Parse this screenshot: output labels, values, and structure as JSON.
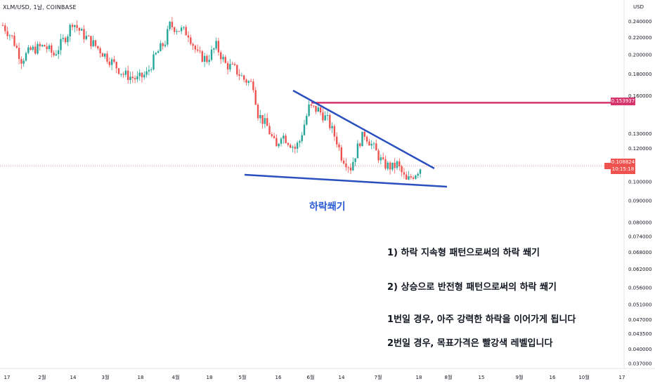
{
  "header": {
    "symbol_title": "XLM/USD, 1날, COINBASE"
  },
  "axis": {
    "currency": "USD",
    "ticks": [
      "0.240000",
      "0.220000",
      "0.200000",
      "0.180000",
      "0.160000",
      "0.130000",
      "0.120000",
      "0.100000",
      "0.090000",
      "0.080000",
      "0.074000",
      "0.068000",
      "0.062000",
      "0.056000",
      "0.051000",
      "0.047000",
      "0.043500",
      "0.040000",
      "0.037000"
    ],
    "time_labels": [
      "17",
      "2월",
      "14",
      "3월",
      "18",
      "4월",
      "18",
      "5월",
      "16",
      "6월",
      "14",
      "7월",
      "18",
      "8월",
      "15",
      "9월",
      "16",
      "10월",
      "17"
    ]
  },
  "price_tags": {
    "resistance": {
      "value": "0.153937",
      "color": "#d7336c"
    },
    "symbol_name": "XLMUSD",
    "current": {
      "value": "0.108824",
      "time": "10:15:18",
      "color": "#ef5350"
    }
  },
  "chart_data": {
    "type": "candlestick",
    "scale": "log",
    "ylim": [
      0.036,
      0.25
    ],
    "y_ticks": [
      0.24,
      0.22,
      0.2,
      0.18,
      0.16,
      0.13,
      0.12,
      0.1,
      0.09,
      0.08,
      0.074,
      0.068,
      0.062,
      0.056,
      0.051,
      0.047,
      0.0435,
      0.04,
      0.037
    ],
    "x_labels": [
      "17",
      "2월",
      "14",
      "3월",
      "18",
      "4월",
      "18",
      "5월",
      "16",
      "6월",
      "14",
      "7월",
      "18",
      "8월",
      "15",
      "9월",
      "16",
      "10월",
      "17"
    ],
    "approx_close_path": [
      [
        0,
        0.235
      ],
      [
        4,
        0.22
      ],
      [
        8,
        0.195
      ],
      [
        12,
        0.205
      ],
      [
        18,
        0.21
      ],
      [
        22,
        0.2
      ],
      [
        28,
        0.225
      ],
      [
        30,
        0.24
      ],
      [
        34,
        0.225
      ],
      [
        38,
        0.215
      ],
      [
        42,
        0.205
      ],
      [
        48,
        0.19
      ],
      [
        52,
        0.18
      ],
      [
        58,
        0.175
      ],
      [
        62,
        0.18
      ],
      [
        66,
        0.2
      ],
      [
        70,
        0.215
      ],
      [
        72,
        0.235
      ],
      [
        76,
        0.23
      ],
      [
        80,
        0.225
      ],
      [
        84,
        0.2
      ],
      [
        88,
        0.195
      ],
      [
        92,
        0.21
      ],
      [
        96,
        0.19
      ],
      [
        100,
        0.185
      ],
      [
        104,
        0.175
      ],
      [
        108,
        0.17
      ],
      [
        110,
        0.145
      ],
      [
        114,
        0.135
      ],
      [
        118,
        0.12
      ],
      [
        120,
        0.13
      ],
      [
        126,
        0.12
      ],
      [
        128,
        0.125
      ],
      [
        132,
        0.15
      ],
      [
        136,
        0.148
      ],
      [
        140,
        0.14
      ],
      [
        144,
        0.125
      ],
      [
        146,
        0.115
      ],
      [
        150,
        0.108
      ],
      [
        154,
        0.125
      ],
      [
        156,
        0.13
      ],
      [
        160,
        0.12
      ],
      [
        164,
        0.11
      ],
      [
        168,
        0.108
      ],
      [
        170,
        0.11
      ],
      [
        174,
        0.1
      ],
      [
        178,
        0.105
      ],
      [
        180,
        0.108
      ]
    ],
    "resistance_level": 0.153937,
    "current_price": 0.108824,
    "falling_wedge": {
      "upper": [
        [
          0.157,
          "start"
        ],
        [
          0.107,
          "end"
        ]
      ],
      "lower": [
        [
          0.1025,
          "start"
        ],
        [
          0.0955,
          "end"
        ]
      ]
    },
    "pattern_label": "하락쐐기"
  },
  "annotations": {
    "wedge_label": "하락쐐기",
    "lines": [
      "1) 하락 지속형 패턴으로써의 하락 쐐기",
      "2) 상승으로 반전형 패턴으로써의 하락 쐐기",
      "1번일 경우, 아주 강력한 하락을 이어가게 됩니다",
      "2번일 경우, 목표가격은 빨강색 레벨입니다"
    ]
  }
}
